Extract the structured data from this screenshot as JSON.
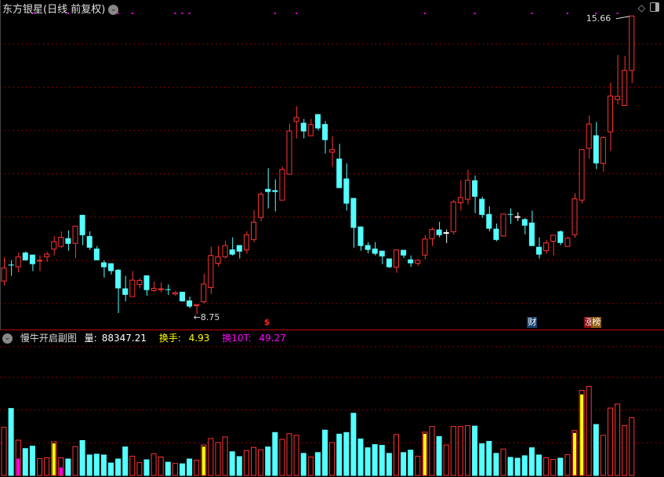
{
  "header": {
    "title": "东方银星(日线 前复权)",
    "dropdown_icon": "chevron-down-icon"
  },
  "top_right_icons": [
    "diamond-icon",
    "panel-toggle-icon"
  ],
  "sub_panel": {
    "title": "慢牛开启副图",
    "volume_label": "量:",
    "volume_value": "88347.21",
    "turnover_label": "换手:",
    "turnover_value": "4.93",
    "turnover10_label": "换10T:",
    "turnover10_value": "49.27"
  },
  "colors": {
    "up": "#ff3333",
    "down": "#54ffff",
    "doji": "#ffffff",
    "grid": "#b00000",
    "separator": "#c00000",
    "dot": "#ff00ff",
    "turnover": "#ffff00",
    "turnover10": "#ff00ff"
  },
  "tags": [
    {
      "label": "$",
      "candle": 38,
      "bg": "transparent",
      "color": "#ff2020",
      "icon": "dollar-icon"
    },
    {
      "label": "财",
      "candle": 75,
      "bg": "#16406e",
      "color": "#ffffff",
      "icon": "finance-icon"
    },
    {
      "label": "涨",
      "candle": 83,
      "bg": "#8a1010",
      "color": "#ffffff",
      "icon": "limit-up-icon"
    },
    {
      "label": "榜",
      "candle": 84,
      "bg": "#8a5a10",
      "color": "#ffffff",
      "icon": "ranking-icon"
    }
  ],
  "chart_data": [
    {
      "type": "candlestick",
      "ylim": [
        8.38,
        16.02
      ],
      "grid_lines": [
        9,
        10,
        11,
        12,
        13,
        14,
        15
      ],
      "grid": true,
      "annotations": [
        {
          "label": "15.66",
          "candle": 89,
          "kind": "high"
        },
        {
          "label": "8.75",
          "candle": 28,
          "kind": "low"
        }
      ],
      "dot_markers_at_candles": [
        5,
        10,
        17,
        19,
        25,
        26,
        27,
        39,
        42,
        60,
        67,
        75,
        80,
        84,
        87
      ],
      "white_doji_candles": [
        63,
        73
      ],
      "ohlc": [
        [
          9.52,
          10.07,
          9.42,
          9.82
        ],
        [
          9.9,
          10.0,
          9.64,
          9.88
        ],
        [
          9.85,
          10.18,
          9.72,
          10.08
        ],
        [
          10.18,
          10.2,
          9.99,
          10.0
        ],
        [
          10.13,
          10.13,
          9.75,
          9.91
        ],
        [
          9.98,
          10.11,
          9.75,
          10.0
        ],
        [
          10.08,
          10.2,
          9.96,
          10.14
        ],
        [
          10.26,
          10.56,
          10.11,
          10.43
        ],
        [
          10.32,
          10.67,
          10.29,
          10.53
        ],
        [
          10.51,
          10.69,
          10.22,
          10.38
        ],
        [
          10.39,
          10.79,
          10.05,
          10.79
        ],
        [
          11.05,
          11.05,
          10.35,
          10.58
        ],
        [
          10.56,
          10.67,
          10.24,
          10.29
        ],
        [
          10.27,
          10.33,
          10.0,
          10.0
        ],
        [
          9.95,
          10.0,
          9.6,
          9.84
        ],
        [
          9.93,
          9.93,
          9.67,
          9.75
        ],
        [
          9.78,
          9.8,
          8.78,
          9.35
        ],
        [
          9.35,
          9.64,
          9.05,
          9.2
        ],
        [
          9.16,
          9.75,
          9.16,
          9.54
        ],
        [
          9.44,
          9.58,
          9.35,
          9.53
        ],
        [
          9.65,
          9.65,
          9.18,
          9.31
        ],
        [
          9.3,
          9.51,
          9.27,
          9.35
        ],
        [
          9.32,
          9.49,
          9.25,
          9.34
        ],
        [
          9.33,
          9.44,
          9.2,
          9.32
        ],
        [
          9.22,
          9.29,
          9.18,
          9.25
        ],
        [
          9.27,
          9.27,
          9.04,
          9.05
        ],
        [
          9.07,
          9.16,
          8.89,
          8.93
        ],
        [
          8.95,
          8.97,
          8.75,
          8.97
        ],
        [
          9.04,
          9.69,
          9.0,
          9.45
        ],
        [
          9.37,
          10.31,
          9.22,
          10.11
        ],
        [
          9.93,
          10.33,
          9.86,
          10.08
        ],
        [
          10.08,
          10.45,
          10.04,
          10.34
        ],
        [
          10.25,
          10.53,
          10.11,
          10.13
        ],
        [
          10.35,
          10.35,
          10.04,
          10.2
        ],
        [
          10.24,
          10.67,
          10.15,
          10.59
        ],
        [
          10.48,
          11.16,
          10.42,
          10.88
        ],
        [
          10.99,
          11.58,
          10.9,
          11.53
        ],
        [
          11.65,
          12.13,
          11.2,
          11.58
        ],
        [
          11.62,
          11.87,
          11.13,
          11.58
        ],
        [
          11.39,
          12.16,
          11.39,
          12.1
        ],
        [
          11.99,
          13.16,
          11.99,
          12.99
        ],
        [
          13.21,
          13.56,
          12.82,
          13.3
        ],
        [
          13.18,
          13.27,
          12.82,
          12.98
        ],
        [
          12.88,
          13.27,
          12.88,
          13.14
        ],
        [
          13.38,
          13.38,
          13.0,
          13.05
        ],
        [
          13.15,
          13.22,
          12.47,
          12.78
        ],
        [
          12.5,
          12.87,
          12.16,
          12.56
        ],
        [
          12.35,
          12.69,
          11.67,
          11.67
        ],
        [
          11.89,
          12.24,
          11.15,
          11.31
        ],
        [
          11.44,
          11.44,
          10.29,
          10.75
        ],
        [
          10.78,
          10.78,
          10.22,
          10.33
        ],
        [
          10.35,
          10.42,
          10.16,
          10.24
        ],
        [
          10.27,
          10.42,
          10.11,
          10.15
        ],
        [
          10.22,
          10.22,
          9.91,
          10.09
        ],
        [
          10.04,
          10.04,
          9.82,
          9.84
        ],
        [
          9.84,
          10.25,
          9.71,
          10.24
        ],
        [
          10.24,
          10.24,
          10.05,
          10.11
        ],
        [
          10.02,
          10.11,
          9.85,
          9.93
        ],
        [
          9.93,
          10.02,
          9.87,
          10.0
        ],
        [
          10.12,
          10.58,
          10.02,
          10.49
        ],
        [
          10.5,
          10.76,
          10.33,
          10.71
        ],
        [
          10.71,
          10.89,
          10.53,
          10.58
        ],
        [
          10.64,
          10.71,
          10.4,
          10.64
        ],
        [
          10.66,
          11.4,
          10.59,
          11.35
        ],
        [
          11.33,
          11.85,
          11.15,
          11.45
        ],
        [
          11.41,
          12.09,
          11.29,
          11.85
        ],
        [
          11.85,
          11.96,
          11.09,
          11.47
        ],
        [
          11.42,
          11.47,
          10.98,
          11.05
        ],
        [
          11.07,
          11.25,
          10.67,
          10.73
        ],
        [
          10.73,
          10.85,
          10.44,
          10.47
        ],
        [
          10.56,
          11.07,
          10.55,
          11.07
        ],
        [
          11.07,
          11.2,
          10.84,
          11.06
        ],
        [
          11.01,
          11.11,
          10.91,
          11.0
        ],
        [
          10.95,
          10.98,
          10.6,
          10.8
        ],
        [
          10.87,
          11.15,
          10.33,
          10.33
        ],
        [
          10.31,
          10.53,
          10.04,
          10.13
        ],
        [
          10.22,
          10.47,
          10.15,
          10.4
        ],
        [
          10.44,
          10.58,
          10.11,
          10.58
        ],
        [
          10.67,
          10.69,
          10.35,
          10.4
        ],
        [
          10.32,
          10.55,
          10.32,
          10.51
        ],
        [
          10.59,
          11.55,
          10.52,
          11.42
        ],
        [
          11.39,
          12.56,
          11.32,
          12.56
        ],
        [
          12.59,
          13.35,
          12.35,
          13.15
        ],
        [
          12.89,
          13.2,
          12.11,
          12.24
        ],
        [
          12.24,
          12.87,
          12.05,
          12.84
        ],
        [
          12.97,
          14.11,
          12.53,
          13.8
        ],
        [
          13.72,
          14.75,
          13.61,
          13.79
        ],
        [
          13.58,
          14.73,
          13.58,
          14.39
        ],
        [
          14.39,
          15.66,
          14.1,
          15.65
        ]
      ]
    },
    {
      "type": "bar",
      "ylim": [
        0,
        222000
      ],
      "grid": true,
      "grid_lines": [
        50000,
        100000,
        150000,
        197000
      ],
      "values": [
        73620,
        103068,
        53988,
        41718,
        45399,
        25767,
        26994,
        51534,
        26994,
        25767,
        44172,
        53988,
        31902,
        33129,
        31902,
        19632,
        25767,
        44172,
        29448,
        19632,
        24540,
        33129,
        28221,
        20859,
        18405,
        18405,
        25767,
        23313,
        46626,
        56442,
        50307,
        58896,
        36810,
        29448,
        38037,
        42945,
        39264,
        44172,
        66258,
        55215,
        63804,
        61350,
        34356,
        28221,
        35583,
        69939,
        50307,
        63804,
        66258,
        95706,
        56442,
        42945,
        47853,
        46626,
        34356,
        62577,
        35583,
        39264,
        29448,
        66258,
        74847,
        60123,
        46626,
        74847,
        74847,
        76074,
        76074,
        49080,
        52761,
        34356,
        40491,
        28221,
        26994,
        30675,
        42945,
        31902,
        26994,
        24540,
        26994,
        31902,
        68712,
        130062,
        136197,
        78528,
        61350,
        103068,
        109203,
        76074,
        88347.21
      ],
      "highlights": [
        {
          "candle": 8,
          "value": 49080,
          "color": "#ffff00"
        },
        {
          "candle": 29,
          "value": 44172,
          "color": "#ffff00"
        },
        {
          "candle": 60,
          "value": 63804,
          "color": "#ffff00"
        },
        {
          "candle": 81,
          "value": 65031,
          "color": "#ffff00"
        },
        {
          "candle": 82,
          "value": 123927,
          "color": "#ffff00"
        },
        {
          "candle": 3,
          "value": 25767,
          "color": "#ff00ff"
        },
        {
          "candle": 9,
          "value": 12270,
          "color": "#ff00ff"
        }
      ]
    }
  ]
}
